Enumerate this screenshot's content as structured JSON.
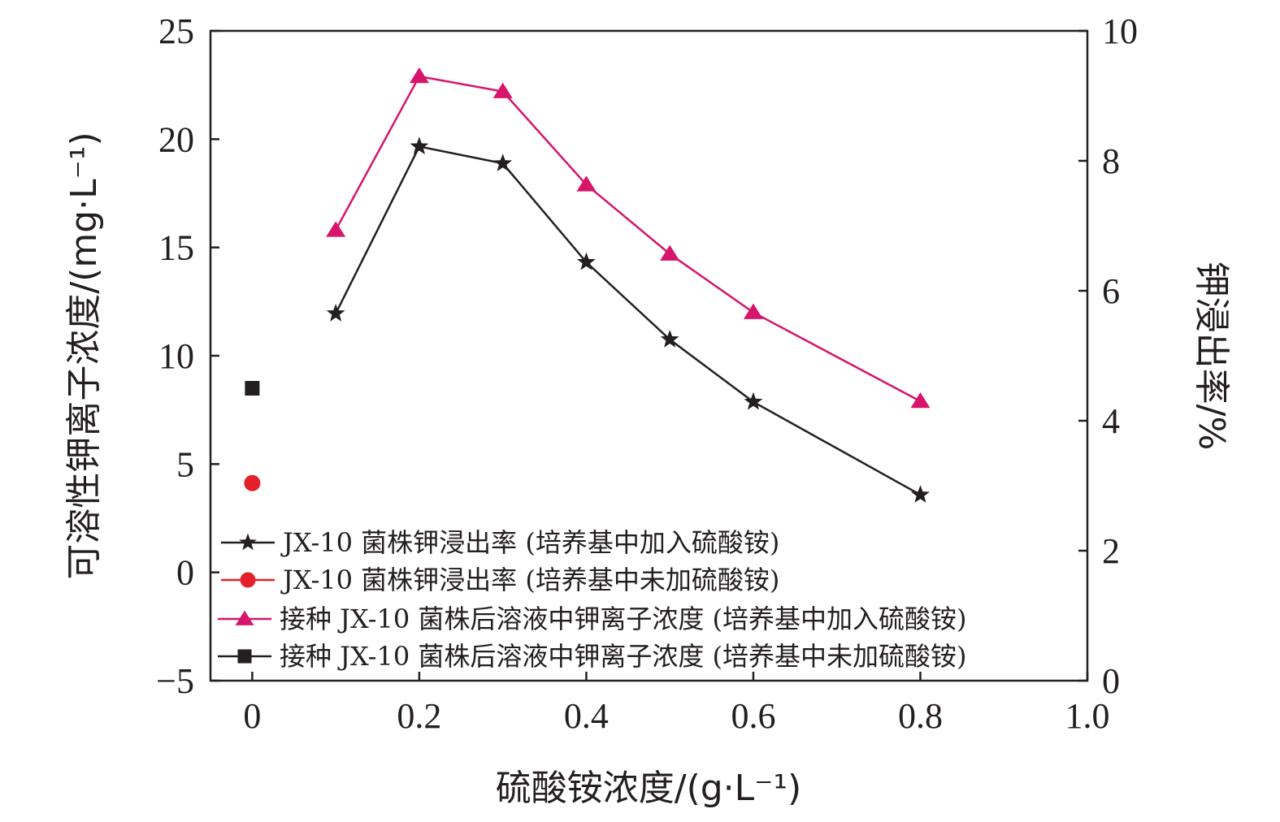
{
  "chart_data": {
    "type": "line",
    "xlabel": "硫酸铵浓度/(g·L⁻¹)",
    "ylabel_left": "可溶性钾离子浓度/(mg·L⁻¹)",
    "ylabel_right": "钾浸出率/%",
    "xlim": [
      -0.05,
      1.0
    ],
    "ylim_left": [
      -5,
      25
    ],
    "ylim_right": [
      0,
      10
    ],
    "x_ticks": [
      0,
      0.2,
      0.4,
      0.6,
      0.8,
      1.0
    ],
    "x_tick_labels": [
      "0",
      "0.2",
      "0.4",
      "0.6",
      "0.8",
      "1.0"
    ],
    "y_left_ticks": [
      -5,
      0,
      5,
      10,
      15,
      20,
      25
    ],
    "y_left_tick_labels": [
      "−5",
      "0",
      "5",
      "10",
      "15",
      "20",
      "25"
    ],
    "y_right_ticks": [
      0,
      2,
      4,
      6,
      8,
      10
    ],
    "y_right_tick_labels": [
      "0",
      "2",
      "4",
      "6",
      "8",
      "10"
    ],
    "grid": false,
    "legend_position": "bottom-left",
    "series": [
      {
        "name": "JX-10 菌株钾浸出率 (培养基中加入硫酸铵)",
        "axis": "right",
        "marker": "star",
        "color": "#231f20",
        "line": true,
        "x": [
          0.1,
          0.2,
          0.3,
          0.4,
          0.5,
          0.6,
          0.8
        ],
        "y": [
          5.65,
          8.22,
          7.96,
          6.44,
          5.25,
          4.29,
          2.86
        ]
      },
      {
        "name": "JX-10 菌株钾浸出率 (培养基中未加硫酸铵)",
        "axis": "right",
        "marker": "circle",
        "color": "#e4202a",
        "line": false,
        "x": [
          0
        ],
        "y": [
          3.04
        ]
      },
      {
        "name": "接种 JX-10 菌株后溶液中钾离子浓度 (培养基中加入硫酸铵)",
        "axis": "left",
        "marker": "triangle",
        "color": "#d6156b",
        "line": true,
        "x": [
          0.1,
          0.2,
          0.3,
          0.4,
          0.5,
          0.6,
          0.8
        ],
        "y": [
          15.8,
          22.9,
          22.2,
          17.9,
          14.7,
          12.0,
          7.9
        ]
      },
      {
        "name": "接种 JX-10 菌株后溶液中钾离子浓度 (培养基中未加硫酸铵)",
        "axis": "left",
        "marker": "square",
        "color": "#231f20",
        "line": false,
        "x": [
          0
        ],
        "y": [
          8.5
        ]
      }
    ]
  }
}
